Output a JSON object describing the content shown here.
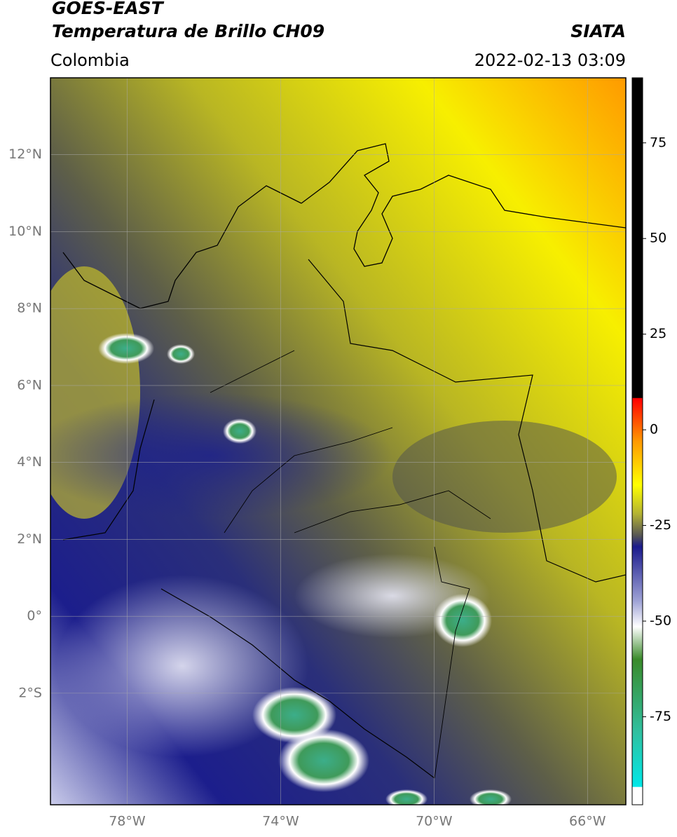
{
  "header": {
    "satellite": "GOES-EAST",
    "product": "Temperatura de Brillo CH09",
    "source": "SIATA",
    "region": "Colombia",
    "datetime": "2022-02-13 03:09"
  },
  "map": {
    "lonlim": [
      -80,
      -65
    ],
    "latlim": [
      -4.9,
      14
    ],
    "lon_ticks": [
      {
        "value": -78,
        "label": "78°W"
      },
      {
        "value": -74,
        "label": "74°W"
      },
      {
        "value": -70,
        "label": "70°W"
      },
      {
        "value": -66,
        "label": "66°W"
      }
    ],
    "lat_ticks": [
      {
        "value": 12,
        "label": "12°N"
      },
      {
        "value": 10,
        "label": "10°N"
      },
      {
        "value": 8,
        "label": "8°N"
      },
      {
        "value": 6,
        "label": "6°N"
      },
      {
        "value": 4,
        "label": "4°N"
      },
      {
        "value": 2,
        "label": "2°N"
      },
      {
        "value": 0,
        "label": "0°"
      },
      {
        "value": -2,
        "label": "2°S"
      }
    ]
  },
  "colorbar": {
    "lim": [
      -98,
      92
    ],
    "ticks": [
      75,
      50,
      25,
      0,
      -25,
      -50,
      -75
    ]
  }
}
